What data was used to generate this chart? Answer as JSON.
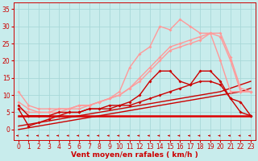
{
  "xlabel": "Vent moyen/en rafales ( km/h )",
  "xlim": [
    -0.5,
    23.5
  ],
  "ylim": [
    -3,
    37
  ],
  "yticks": [
    0,
    5,
    10,
    15,
    20,
    25,
    30,
    35
  ],
  "xticks": [
    0,
    1,
    2,
    3,
    4,
    5,
    6,
    7,
    8,
    9,
    10,
    11,
    12,
    13,
    14,
    15,
    16,
    17,
    18,
    19,
    20,
    21,
    22,
    23
  ],
  "bg_color": "#c8ecec",
  "grid_color": "#a8d8d8",
  "series": [
    {
      "x": [
        0,
        1,
        2,
        3,
        4,
        5,
        6,
        7,
        8,
        9,
        10,
        11,
        12,
        13,
        14,
        15,
        16,
        17,
        18,
        19,
        20,
        21,
        22,
        23
      ],
      "y": [
        4,
        4,
        4,
        4,
        4,
        4,
        4,
        4,
        4,
        4,
        4,
        4,
        4,
        4,
        4,
        4,
        4,
        4,
        4,
        4,
        4,
        4,
        4,
        4
      ],
      "color": "#dd0000",
      "lw": 1.8,
      "marker": null,
      "ms": 0,
      "zorder": 2
    },
    {
      "x": [
        0,
        1,
        2,
        3,
        4,
        5,
        6,
        7,
        8,
        9,
        10,
        11,
        12,
        13,
        14,
        15,
        16,
        17,
        18,
        19,
        20,
        21,
        22,
        23
      ],
      "y": [
        0,
        0.5,
        1,
        1.5,
        2,
        2.5,
        3,
        3.5,
        4,
        4.5,
        5,
        5.5,
        6,
        6.5,
        7,
        7.5,
        8,
        8.5,
        9,
        9.5,
        10,
        10.5,
        11,
        12
      ],
      "color": "#cc0000",
      "lw": 1.0,
      "marker": null,
      "ms": 0,
      "zorder": 2
    },
    {
      "x": [
        0,
        1,
        2,
        3,
        4,
        5,
        6,
        7,
        8,
        9,
        10,
        11,
        12,
        13,
        14,
        15,
        16,
        17,
        18,
        19,
        20,
        21,
        22,
        23
      ],
      "y": [
        1,
        1.5,
        2,
        2.5,
        3,
        3.5,
        4,
        4.5,
        5,
        5.5,
        6,
        6.5,
        7,
        7.5,
        8,
        8.5,
        9,
        9.5,
        10,
        10.5,
        11,
        12,
        13,
        14
      ],
      "color": "#cc0000",
      "lw": 1.0,
      "marker": null,
      "ms": 0,
      "zorder": 2
    },
    {
      "x": [
        0,
        1,
        2,
        3,
        4,
        5,
        6,
        7,
        8,
        9,
        10,
        11,
        12,
        13,
        14,
        15,
        16,
        17,
        18,
        19,
        20,
        21,
        22,
        23
      ],
      "y": [
        6,
        1,
        2,
        3,
        4,
        5,
        5,
        6,
        6,
        7,
        7,
        8,
        10,
        14,
        17,
        17,
        14,
        13,
        17,
        17,
        14,
        9,
        8,
        4
      ],
      "color": "#cc0000",
      "lw": 1.0,
      "marker": "D",
      "ms": 2.0,
      "zorder": 4
    },
    {
      "x": [
        0,
        1,
        2,
        3,
        4,
        5,
        6,
        7,
        8,
        9,
        10,
        11,
        12,
        13,
        14,
        15,
        16,
        17,
        18,
        19,
        20,
        21,
        22,
        23
      ],
      "y": [
        7,
        4,
        4,
        4,
        5,
        5,
        5,
        6,
        6,
        6,
        7,
        7,
        8,
        9,
        10,
        11,
        12,
        13,
        14,
        14,
        13,
        9,
        5,
        4
      ],
      "color": "#cc0000",
      "lw": 1.0,
      "marker": "D",
      "ms": 2.0,
      "zorder": 4
    },
    {
      "x": [
        0,
        1,
        2,
        3,
        4,
        5,
        6,
        7,
        8,
        9,
        10,
        11,
        12,
        13,
        14,
        15,
        16,
        17,
        18,
        19,
        20,
        21,
        22,
        23
      ],
      "y": [
        11,
        7,
        6,
        6,
        6,
        6,
        7,
        7,
        8,
        9,
        11,
        18,
        22,
        24,
        30,
        29,
        32,
        30,
        28,
        28,
        20,
        11,
        11,
        11
      ],
      "color": "#ff9999",
      "lw": 1.0,
      "marker": "D",
      "ms": 2.0,
      "zorder": 3
    },
    {
      "x": [
        0,
        1,
        2,
        3,
        4,
        5,
        6,
        7,
        8,
        9,
        10,
        11,
        12,
        13,
        14,
        15,
        16,
        17,
        18,
        19,
        20,
        21,
        22,
        23
      ],
      "y": [
        6,
        5,
        5,
        5,
        5,
        6,
        6,
        7,
        8,
        9,
        10,
        12,
        14,
        17,
        20,
        23,
        24,
        25,
        26,
        28,
        28,
        21,
        12,
        11
      ],
      "color": "#ff9999",
      "lw": 1.0,
      "marker": "D",
      "ms": 2.0,
      "zorder": 3
    },
    {
      "x": [
        0,
        1,
        2,
        3,
        4,
        5,
        6,
        7,
        8,
        9,
        10,
        11,
        12,
        13,
        14,
        15,
        16,
        17,
        18,
        19,
        20,
        21,
        22,
        23
      ],
      "y": [
        8,
        6,
        5,
        5,
        6,
        6,
        7,
        7,
        8,
        9,
        10,
        12,
        15,
        18,
        21,
        24,
        25,
        26,
        27,
        28,
        27,
        20,
        11,
        11
      ],
      "color": "#ff9999",
      "lw": 1.0,
      "marker": "D",
      "ms": 2.0,
      "zorder": 3
    }
  ],
  "axis_fontsize": 6.5,
  "tick_fontsize": 5.5
}
